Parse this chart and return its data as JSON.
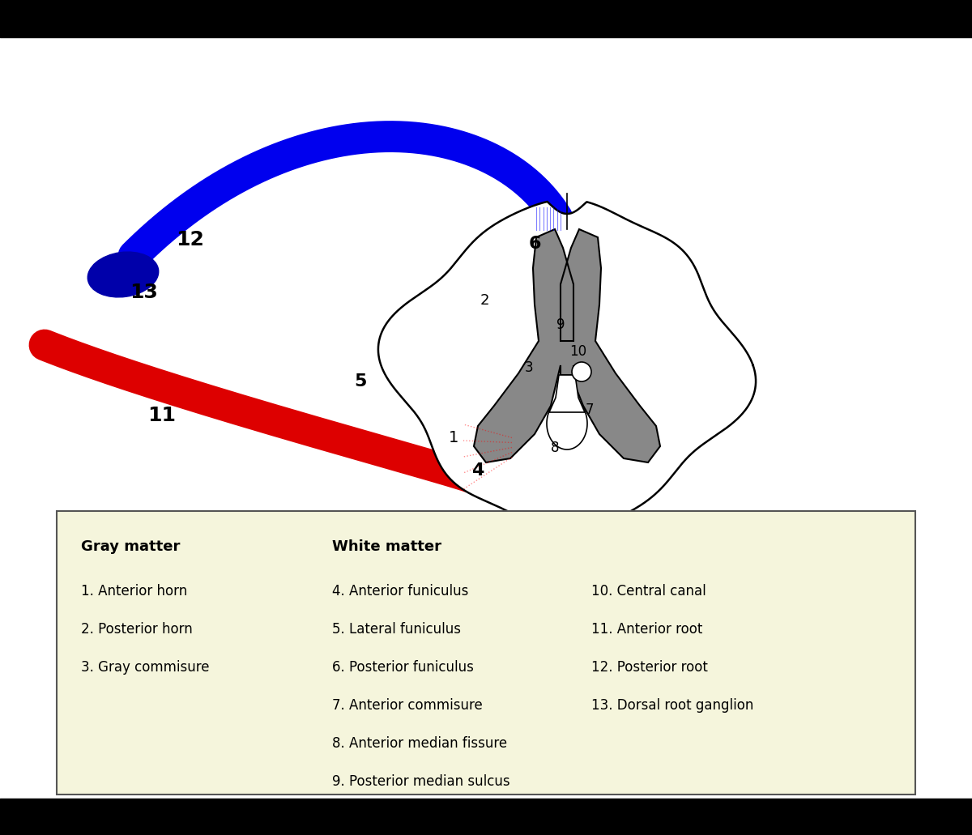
{
  "bg_color": "#ffffff",
  "gray_matter_color": "#888888",
  "blue_root_color": "#0000ee",
  "red_root_color": "#dd0000",
  "ganglion_color": "#0000aa",
  "legend_bg": "#f5f5dc",
  "legend_border": "#555555",
  "black_bars_top": "#000000",
  "black_bars_bottom": "#000000",
  "legend": {
    "gray_matter_header": "Gray matter",
    "white_matter_header": "White matter",
    "col1": [
      "1. Anterior horn",
      "2. Posterior horn",
      "3. Gray commisure"
    ],
    "col2": [
      "4. Anterior funiculus",
      "5. Lateral funiculus",
      "6. Posterior funiculus",
      "7. Anterior commisure",
      "8. Anterior median fissure",
      "9. Posterior median sulcus"
    ],
    "col3": [
      "10. Central canal",
      "11. Anterior root",
      "12. Posterior root",
      "13. Dorsal root ganglion"
    ]
  }
}
